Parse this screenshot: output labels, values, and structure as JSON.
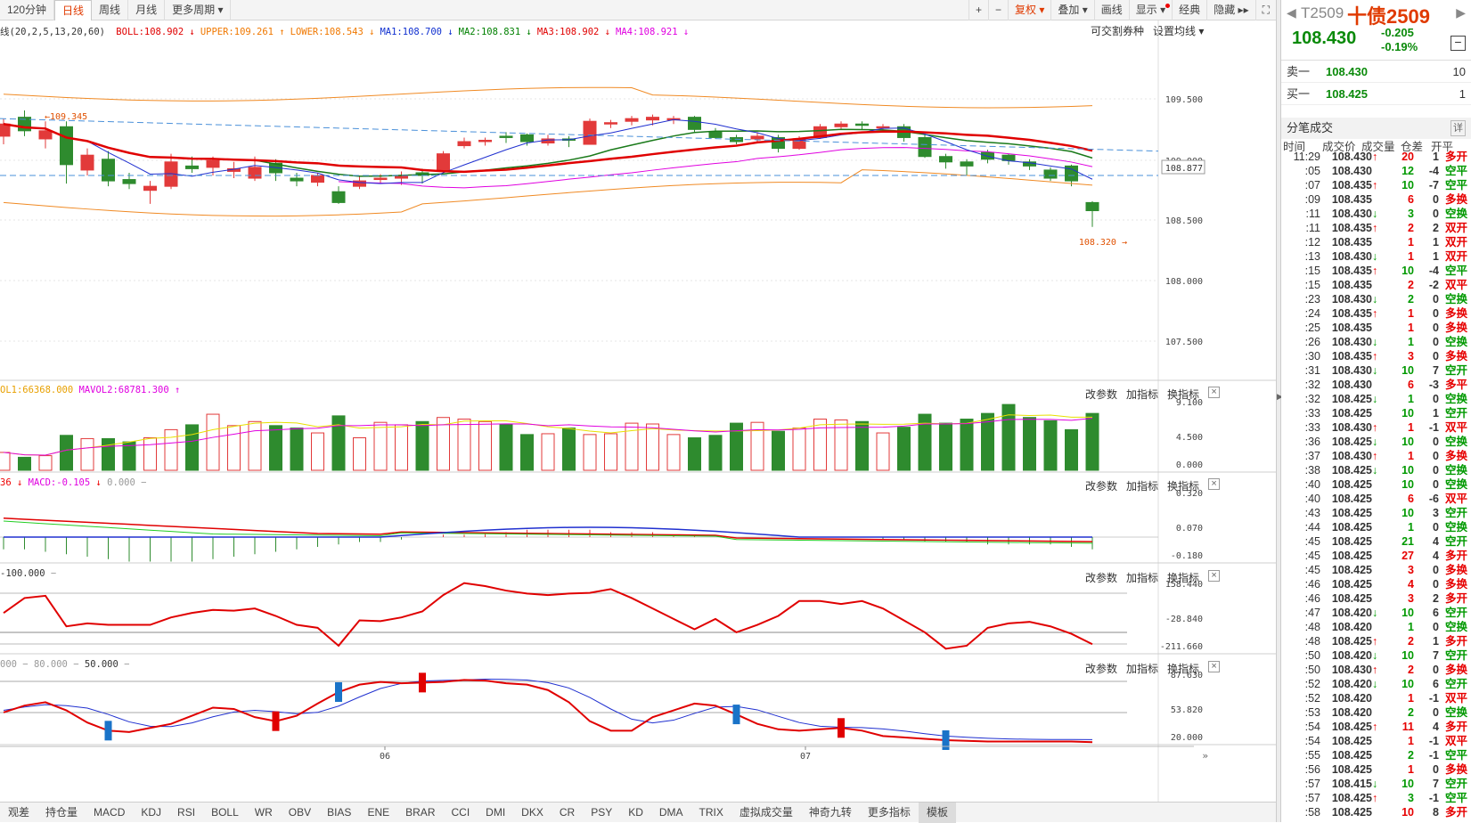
{
  "toolbar": {
    "periods": [
      "120分钟",
      "日线",
      "周线",
      "月线",
      "更多周期"
    ],
    "tools": [
      "+",
      "−",
      "复权",
      "叠加",
      "画线",
      "显示",
      "经典",
      "隐藏",
      "⛶"
    ]
  },
  "indicators": {
    "boll_prefix": "线(20,2,5,13,20,60)",
    "items": [
      {
        "text": "BOLL:108.902",
        "color": "#e00000",
        "arrow": "↓"
      },
      {
        "text": "UPPER:109.261",
        "color": "#f07800",
        "arrow": "↑"
      },
      {
        "text": "LOWER:108.543",
        "color": "#f07800",
        "arrow": "↓"
      },
      {
        "text": "MA1:108.700",
        "color": "#1030d0",
        "arrow": "↓"
      },
      {
        "text": "MA2:108.831",
        "color": "#008000",
        "arrow": "↓"
      },
      {
        "text": "MA3:108.902",
        "color": "#e00000",
        "arrow": "↓"
      },
      {
        "text": "MA4:108.921",
        "color": "#e000e0",
        "arrow": "↓"
      }
    ],
    "right_links": [
      "可交割券种",
      "设置均线"
    ],
    "vol": {
      "a": "OL1:66368.000",
      "b": "MAVOL2:68781.300"
    },
    "macd": {
      "a": "36",
      "b": "MACD:-0.105",
      "c": "0.000"
    },
    "cci": "-100.000",
    "kdj": {
      "a": "000",
      "b": "80.000",
      "c": "50.000"
    }
  },
  "panel_links": [
    "改参数",
    "加指标",
    "换指标"
  ],
  "axes": {
    "main": [
      "109.500",
      "109.000",
      "108.877",
      "108.500",
      "108.000",
      "107.500"
    ],
    "vol": [
      "9.100",
      "4.500",
      "0.000"
    ],
    "macd": [
      "0.320",
      "0.070",
      "-0.180"
    ],
    "cci": [
      "158.440",
      "-28.840",
      "-211.660"
    ],
    "kdj": [
      "87.630",
      "53.820",
      "20.000"
    ]
  },
  "annotations": {
    "high": "109.345",
    "low": "108.320"
  },
  "xaxis": [
    "06",
    "07"
  ],
  "bottom_tabs": [
    "观差",
    "持仓量",
    "MACD",
    "KDJ",
    "RSI",
    "BOLL",
    "WR",
    "OBV",
    "BIAS",
    "ENE",
    "BRAR",
    "CCI",
    "DMI",
    "DKX",
    "CR",
    "PSY",
    "KD",
    "DMA",
    "TRIX",
    "虚拟成交量",
    "神奇九转",
    "更多指标",
    "模板"
  ],
  "quote": {
    "code": "T2509",
    "name": "十债2509",
    "price": "108.430",
    "change": "-0.205",
    "pct": "-0.19%",
    "sell_label": "卖一",
    "sell_price": "108.430",
    "sell_vol": "10",
    "buy_label": "买一",
    "buy_price": "108.425",
    "buy_vol": "1",
    "section": "分笔成交",
    "detail": "详",
    "headers": [
      "时间",
      "成交价",
      "成交量",
      "仓差",
      "开平"
    ]
  },
  "trades": [
    [
      "11:29",
      "108.430",
      "↑",
      "20",
      "1",
      "多开"
    ],
    [
      ":05",
      "108.430",
      "",
      "12",
      "-4",
      "空平"
    ],
    [
      ":07",
      "108.435",
      "↑",
      "10",
      "-7",
      "空平"
    ],
    [
      ":09",
      "108.435",
      "",
      "6",
      "0",
      "多换"
    ],
    [
      ":11",
      "108.430",
      "↓",
      "3",
      "0",
      "空换"
    ],
    [
      ":11",
      "108.435",
      "↑",
      "2",
      "2",
      "双开"
    ],
    [
      ":12",
      "108.435",
      "",
      "1",
      "1",
      "双开"
    ],
    [
      ":13",
      "108.430",
      "↓",
      "1",
      "1",
      "双开"
    ],
    [
      ":15",
      "108.435",
      "↑",
      "10",
      "-4",
      "空平"
    ],
    [
      ":15",
      "108.435",
      "",
      "2",
      "-2",
      "双平"
    ],
    [
      ":23",
      "108.430",
      "↓",
      "2",
      "0",
      "空换"
    ],
    [
      ":24",
      "108.435",
      "↑",
      "1",
      "0",
      "多换"
    ],
    [
      ":25",
      "108.435",
      "",
      "1",
      "0",
      "多换"
    ],
    [
      ":26",
      "108.430",
      "↓",
      "1",
      "0",
      "空换"
    ],
    [
      ":30",
      "108.435",
      "↑",
      "3",
      "0",
      "多换"
    ],
    [
      ":31",
      "108.430",
      "↓",
      "10",
      "7",
      "空开"
    ],
    [
      ":32",
      "108.430",
      "",
      "6",
      "-3",
      "多平"
    ],
    [
      ":32",
      "108.425",
      "↓",
      "1",
      "0",
      "空换"
    ],
    [
      ":33",
      "108.425",
      "",
      "10",
      "1",
      "空开"
    ],
    [
      ":33",
      "108.430",
      "↑",
      "1",
      "-1",
      "双平"
    ],
    [
      ":36",
      "108.425",
      "↓",
      "10",
      "0",
      "空换"
    ],
    [
      ":37",
      "108.430",
      "↑",
      "1",
      "0",
      "多换"
    ],
    [
      ":38",
      "108.425",
      "↓",
      "10",
      "0",
      "空换"
    ],
    [
      ":40",
      "108.425",
      "",
      "10",
      "0",
      "空换"
    ],
    [
      ":40",
      "108.425",
      "",
      "6",
      "-6",
      "双平"
    ],
    [
      ":43",
      "108.425",
      "",
      "10",
      "3",
      "空开"
    ],
    [
      ":44",
      "108.425",
      "",
      "1",
      "0",
      "空换"
    ],
    [
      ":45",
      "108.425",
      "",
      "21",
      "4",
      "空开"
    ],
    [
      ":45",
      "108.425",
      "",
      "27",
      "4",
      "多开"
    ],
    [
      ":45",
      "108.425",
      "",
      "3",
      "0",
      "多换"
    ],
    [
      ":46",
      "108.425",
      "",
      "4",
      "0",
      "多换"
    ],
    [
      ":46",
      "108.425",
      "",
      "3",
      "2",
      "多开"
    ],
    [
      ":47",
      "108.420",
      "↓",
      "10",
      "6",
      "空开"
    ],
    [
      ":48",
      "108.420",
      "",
      "1",
      "0",
      "空换"
    ],
    [
      ":48",
      "108.425",
      "↑",
      "2",
      "1",
      "多开"
    ],
    [
      ":50",
      "108.420",
      "↓",
      "10",
      "7",
      "空开"
    ],
    [
      ":50",
      "108.430",
      "↑",
      "2",
      "0",
      "多换"
    ],
    [
      ":52",
      "108.420",
      "↓",
      "10",
      "6",
      "空开"
    ],
    [
      ":52",
      "108.420",
      "",
      "1",
      "-1",
      "双平"
    ],
    [
      ":53",
      "108.420",
      "",
      "2",
      "0",
      "空换"
    ],
    [
      ":54",
      "108.425",
      "↑",
      "11",
      "4",
      "多开"
    ],
    [
      ":54",
      "108.425",
      "",
      "1",
      "-1",
      "双平"
    ],
    [
      ":55",
      "108.425",
      "",
      "2",
      "-1",
      "空平"
    ],
    [
      ":56",
      "108.425",
      "",
      "1",
      "0",
      "多换"
    ],
    [
      ":57",
      "108.415",
      "↓",
      "10",
      "7",
      "空开"
    ],
    [
      ":57",
      "108.425",
      "↑",
      "3",
      "-1",
      "空平"
    ],
    [
      ":58",
      "108.425",
      "",
      "10",
      "8",
      "多开"
    ]
  ],
  "colors": {
    "up": "#e60000",
    "down": "#2e8b2e",
    "accent": "#e03a00"
  }
}
